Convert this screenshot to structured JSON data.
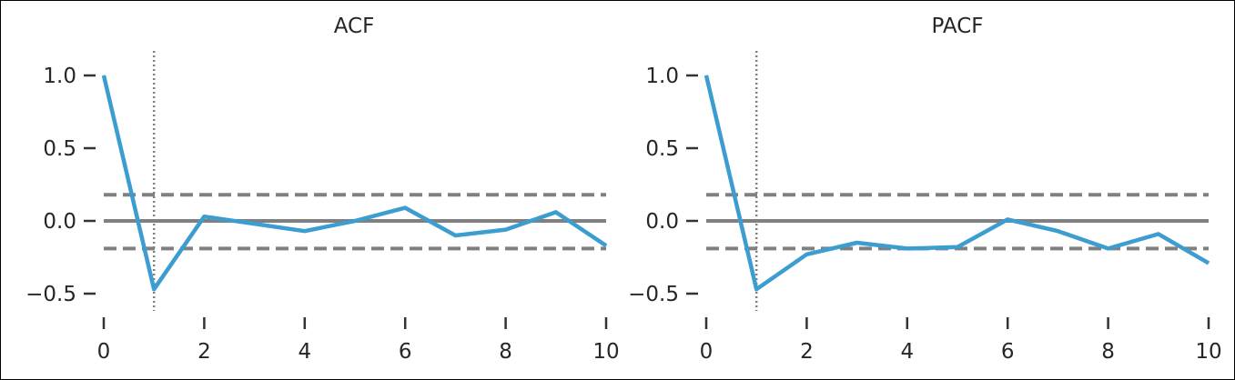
{
  "chart_data": [
    {
      "type": "line",
      "title": "ACF",
      "x": [
        0,
        1,
        2,
        3,
        4,
        5,
        6,
        7,
        8,
        9,
        10
      ],
      "series": [
        {
          "values": [
            1.0,
            -0.47,
            0.03,
            -0.02,
            -0.07,
            0.0,
            0.09,
            -0.1,
            -0.06,
            0.06,
            -0.17
          ]
        }
      ],
      "confidence_bounds": [
        0.18,
        -0.19
      ],
      "zero_line": 0.0,
      "vertical_marker_x": 1,
      "xlim": [
        0,
        10
      ],
      "ylim": [
        -0.5,
        1.0
      ],
      "xticks": [
        "0",
        "2",
        "4",
        "6",
        "8",
        "10"
      ],
      "yticks": [
        "1.0",
        "0.5",
        "0.0",
        "−0.5"
      ],
      "grid": false,
      "colors": {
        "line": "#3c9dd0",
        "reference": "#808080"
      }
    },
    {
      "type": "line",
      "title": "PACF",
      "x": [
        0,
        1,
        2,
        3,
        4,
        5,
        6,
        7,
        8,
        9,
        10
      ],
      "series": [
        {
          "values": [
            1.0,
            -0.47,
            -0.23,
            -0.15,
            -0.19,
            -0.18,
            0.01,
            -0.07,
            -0.19,
            -0.09,
            -0.29
          ]
        }
      ],
      "confidence_bounds": [
        0.18,
        -0.19
      ],
      "zero_line": 0.0,
      "vertical_marker_x": 1,
      "xlim": [
        0,
        10
      ],
      "ylim": [
        -0.5,
        1.0
      ],
      "xticks": [
        "0",
        "2",
        "4",
        "6",
        "8",
        "10"
      ],
      "yticks": [
        "1.0",
        "0.5",
        "0.0",
        "−0.5"
      ],
      "grid": false,
      "colors": {
        "line": "#3c9dd0",
        "reference": "#808080"
      }
    }
  ]
}
